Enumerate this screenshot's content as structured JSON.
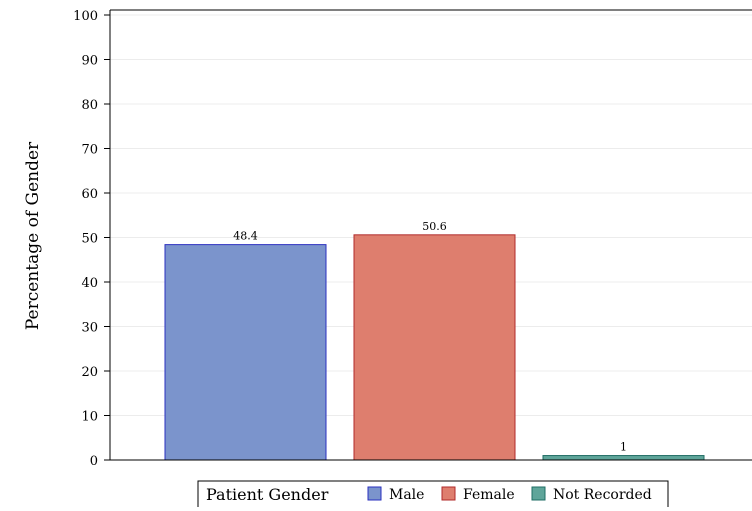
{
  "chart_data": {
    "type": "bar",
    "ylabel": "Percentage of Gender",
    "xlabel": "",
    "title": "",
    "ylim": [
      0,
      100
    ],
    "yticks": [
      0,
      10,
      20,
      30,
      40,
      50,
      60,
      70,
      80,
      90,
      100
    ],
    "grid": true,
    "legend_title": "Patient Gender",
    "legend_position": "bottom",
    "categories": [
      "Male",
      "Female",
      "Not Recorded"
    ],
    "values": [
      48.4,
      50.6,
      1
    ],
    "data_labels": [
      "48.4",
      "50.6",
      "1"
    ],
    "colors": [
      {
        "fill": "#7b94cc",
        "stroke": "#2a2fbf"
      },
      {
        "fill": "#de7e6e",
        "stroke": "#b02a2a"
      },
      {
        "fill": "#5fa59a",
        "stroke": "#1f6e64"
      }
    ]
  }
}
